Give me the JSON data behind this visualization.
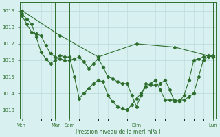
{
  "background_color": "#d8f0f0",
  "grid_color": "#b8d8d8",
  "grid_color_minor": "#cce8e8",
  "line_color": "#2d6e2d",
  "marker_color": "#2d6e2d",
  "xlabel": "Pression niveau de la mer( hPa )",
  "ylim": [
    1012.5,
    1019.5
  ],
  "yticks": [
    1013,
    1014,
    1015,
    1016,
    1017,
    1018,
    1019
  ],
  "series1_x": [
    0,
    4,
    8,
    12,
    16,
    20
  ],
  "series1_y": [
    1019.0,
    1017.5,
    1016.2,
    1017.0,
    1016.8,
    1016.2
  ],
  "series2_x": [
    0,
    0.5,
    1,
    1.5,
    2,
    2.5,
    3,
    3.5,
    4,
    4.5,
    5,
    5.5,
    6,
    6.5,
    7,
    7.5,
    8,
    8.5,
    9,
    9.5,
    10,
    10.5,
    11,
    11.5,
    12,
    12.5,
    13,
    13.5,
    14,
    14.5,
    15,
    15.5,
    16,
    16.5,
    17,
    17.5,
    18,
    18.5,
    19,
    19.5,
    20
  ],
  "series2_y": [
    1018.8,
    1018.5,
    1018.2,
    1017.4,
    1016.5,
    1016.1,
    1015.8,
    1016.0,
    1016.3,
    1016.2,
    1016.2,
    1015.0,
    1013.7,
    1014.0,
    1014.3,
    1014.6,
    1014.8,
    1014.7,
    1013.9,
    1013.5,
    1013.2,
    1013.1,
    1013.0,
    1013.3,
    1013.7,
    1014.0,
    1014.4,
    1014.6,
    1014.8,
    1014.2,
    1013.6,
    1013.6,
    1013.6,
    1013.5,
    1013.9,
    1014.8,
    1016.0,
    1016.1,
    1016.2,
    1016.3,
    1016.2
  ],
  "series3_x": [
    0,
    0.5,
    1,
    1.5,
    2,
    2.5,
    3,
    3.5,
    4,
    4.5,
    5,
    5.5,
    6,
    6.5,
    7,
    7.5,
    8,
    8.5,
    9,
    9.5,
    10,
    10.5,
    11,
    11.5,
    12,
    12.5,
    13,
    13.5,
    14,
    14.5,
    15,
    15.5,
    16,
    16.5,
    17,
    17.5,
    18,
    18.5,
    19,
    19.5,
    20
  ],
  "series3_y": [
    1018.7,
    1018.2,
    1017.7,
    1017.6,
    1017.5,
    1016.9,
    1016.4,
    1016.2,
    1016.1,
    1016.0,
    1016.0,
    1016.1,
    1016.2,
    1015.9,
    1015.5,
    1015.8,
    1016.1,
    1015.6,
    1015.0,
    1014.9,
    1014.7,
    1014.6,
    1014.6,
    1013.9,
    1013.2,
    1013.9,
    1014.6,
    1014.5,
    1014.5,
    1014.6,
    1014.8,
    1014.2,
    1013.5,
    1013.6,
    1013.6,
    1013.8,
    1014.0,
    1015.0,
    1016.0,
    1016.2,
    1016.3
  ],
  "vline_x": [
    3.5,
    5,
    12,
    20
  ],
  "xlim": [
    -0.2,
    20.3
  ],
  "tick_positions": [
    0,
    3.5,
    5,
    12,
    16,
    20
  ],
  "tick_labels": [
    "Ven",
    "Mar",
    "Sam",
    "Dim",
    "",
    "Lun"
  ],
  "figsize": [
    3.2,
    2.0
  ],
  "dpi": 100
}
